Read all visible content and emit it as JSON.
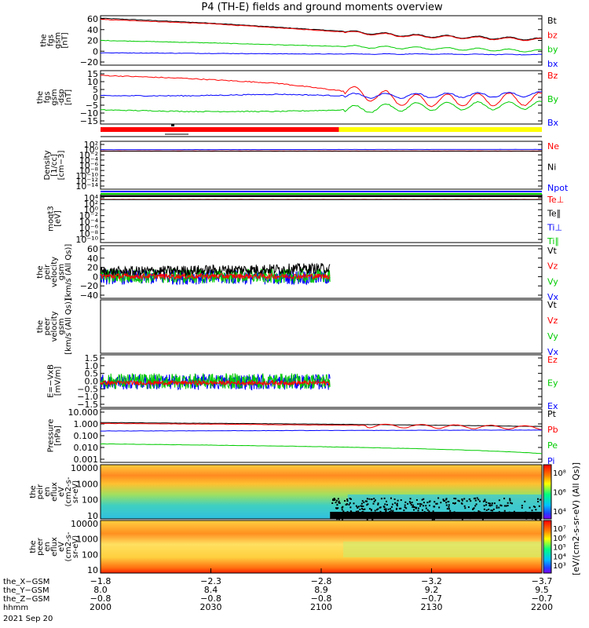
{
  "title": "P4 (TH-E) fields and ground moments overview",
  "colors": {
    "black": "#000000",
    "red": "#ff0000",
    "green": "#00cc00",
    "blue": "#0000ff",
    "yellow": "#ffff00"
  },
  "chart_data": [
    {
      "type": "line",
      "panel": "fgs_btotal",
      "ylabel": [
        "the",
        "fgs",
        "gsm",
        "[nT]"
      ],
      "yticks": [
        "60",
        "40",
        "20",
        "0",
        "−20"
      ],
      "ylim": [
        -20,
        60
      ],
      "legend": [
        {
          "name": "Bt",
          "color": "#000000"
        },
        {
          "name": "bz",
          "color": "#ff0000"
        },
        {
          "name": "by",
          "color": "#00cc00"
        },
        {
          "name": "bx",
          "color": "#0000ff"
        }
      ],
      "series": [
        {
          "name": "Bt",
          "x": [
            0,
            0.25,
            0.5,
            0.7,
            1
          ],
          "y": [
            56,
            48,
            37,
            28,
            22
          ]
        },
        {
          "name": "bz",
          "x": [
            0,
            0.25,
            0.5,
            0.7,
            1
          ],
          "y": [
            54,
            47,
            36,
            27,
            21
          ]
        },
        {
          "name": "by",
          "x": [
            0,
            0.25,
            0.5,
            0.7,
            1
          ],
          "y": [
            20,
            16,
            11,
            8,
            3
          ]
        },
        {
          "name": "bx",
          "x": [
            0,
            0.25,
            0.5,
            0.7,
            1
          ],
          "y": [
            0,
            -1,
            -2,
            -2,
            -3
          ]
        }
      ]
    },
    {
      "type": "line",
      "panel": "fgs_gsm",
      "ylabel": [
        "the",
        "fgs",
        "gsm",
        "-dsp",
        "[nT]"
      ],
      "yticks": [
        "15",
        "10",
        "5",
        "0",
        "−5",
        "−10",
        "−15"
      ],
      "ylim": [
        -18,
        16
      ],
      "legend": [
        {
          "name": "Bz",
          "color": "#ff0000"
        },
        {
          "name": "By",
          "color": "#00cc00"
        },
        {
          "name": "Bx",
          "color": "#0000ff"
        }
      ],
      "series": [
        {
          "name": "Bz",
          "x": [
            0,
            0.2,
            0.4,
            0.55,
            0.7,
            1
          ],
          "y": [
            13,
            11,
            8,
            3,
            -3,
            -2
          ]
        },
        {
          "name": "By",
          "x": [
            0,
            0.2,
            0.4,
            0.55,
            0.7,
            1
          ],
          "y": [
            -9,
            -10,
            -10,
            -9,
            -7,
            -6
          ]
        },
        {
          "name": "Bx",
          "x": [
            0,
            0.2,
            0.4,
            0.55,
            0.7,
            1
          ],
          "y": [
            0,
            0,
            1,
            0,
            0,
            1
          ]
        }
      ]
    },
    {
      "type": "line",
      "panel": "density",
      "ylabel": [
        "Density",
        "[1/cc]",
        "[cm−3]"
      ],
      "yticks": [
        "10²",
        "10⁰",
        "10⁻²",
        "10⁻⁴",
        "10⁻⁶",
        "10⁻⁸",
        "10⁻¹⁰",
        "10⁻¹²",
        "10⁻¹⁴"
      ],
      "ylog": true,
      "legend": [
        {
          "name": "Ne",
          "color": "#ff0000"
        },
        {
          "name": "Ni",
          "color": "#000000"
        },
        {
          "name": "Npot",
          "color": "#0000ff"
        }
      ],
      "series": [
        {
          "name": "Npot",
          "y": [
            1.0,
            1.2
          ]
        },
        {
          "name": "Ne",
          "y": [
            0.3,
            0.3
          ]
        },
        {
          "name": "Ni",
          "y": [
            0.25,
            0.25
          ]
        }
      ]
    },
    {
      "type": "line",
      "panel": "temperature",
      "ylabel": [
        "moqt3",
        "[eV]"
      ],
      "yticks": [
        "10⁴",
        "10²",
        "10⁰",
        "10⁻²",
        "10⁻⁴",
        "10⁻⁶",
        "10⁻⁸",
        "10⁻¹⁰"
      ],
      "ylog": true,
      "legend": [
        {
          "name": "Te⊥",
          "color": "#ff0000"
        },
        {
          "name": "Te∥",
          "color": "#000000"
        },
        {
          "name": "Ti⊥",
          "color": "#0000ff"
        },
        {
          "name": "Ti∥",
          "color": "#00cc00"
        }
      ]
    },
    {
      "type": "line",
      "panel": "peir_velocity",
      "ylabel": [
        "the",
        "peir",
        "velocity",
        "gsm",
        "[km/s (All Qs)]"
      ],
      "yticks": [
        "60",
        "40",
        "20",
        "0",
        "−20",
        "−40"
      ],
      "ylim": [
        -40,
        60
      ],
      "legend": [
        {
          "name": "Vt",
          "color": "#000000"
        },
        {
          "name": "Vz",
          "color": "#ff0000"
        },
        {
          "name": "Vy",
          "color": "#00cc00"
        },
        {
          "name": "Vx",
          "color": "#0000ff"
        }
      ]
    },
    {
      "type": "line",
      "panel": "peer_velocity",
      "ylabel": [
        "the",
        "peer",
        "velocity",
        "gsm",
        "[km/s (All Qs)]"
      ],
      "legend": [
        {
          "name": "Vt",
          "color": "#000000"
        },
        {
          "name": "Vz",
          "color": "#ff0000"
        },
        {
          "name": "Vy",
          "color": "#00cc00"
        },
        {
          "name": "Vx",
          "color": "#0000ff"
        }
      ]
    },
    {
      "type": "line",
      "panel": "efield",
      "ylabel": [
        "E=−VxB",
        "[mV/m]"
      ],
      "yticks": [
        "1.5",
        "1.0",
        "0.5",
        "0.0",
        "−0.5",
        "−1.0",
        "−1.5"
      ],
      "ylim": [
        -1.5,
        1.5
      ],
      "legend": [
        {
          "name": "Ez",
          "color": "#ff0000"
        },
        {
          "name": "Ey",
          "color": "#00cc00"
        },
        {
          "name": "Ex",
          "color": "#0000ff"
        }
      ]
    },
    {
      "type": "line",
      "panel": "pressure",
      "ylabel": [
        "Pressure",
        "[nPa]"
      ],
      "yticks": [
        "10.000",
        "1.000",
        "0.100",
        "0.010",
        "0.001"
      ],
      "ylog": true,
      "legend": [
        {
          "name": "Pt",
          "color": "#000000"
        },
        {
          "name": "Pb",
          "color": "#ff0000"
        },
        {
          "name": "Pe",
          "color": "#00cc00"
        },
        {
          "name": "Pi",
          "color": "#0000ff"
        }
      ],
      "series": [
        {
          "name": "Pt",
          "y": [
            1.3,
            0.6
          ]
        },
        {
          "name": "Pb",
          "y": [
            1.1,
            0.5
          ]
        },
        {
          "name": "Pi",
          "y": [
            0.25,
            0.3
          ]
        },
        {
          "name": "Pe",
          "y": [
            0.02,
            0.003
          ]
        }
      ]
    },
    {
      "type": "heatmap",
      "panel": "peir_spectrogram",
      "ylabel": [
        "the",
        "peir",
        "en",
        "eflux",
        "eV",
        "(cm2-s-",
        "sr-eV)"
      ],
      "yticks": [
        "10000",
        "1000",
        "100",
        "10"
      ],
      "colorbar_ticks": [
        "10⁸",
        "10⁶",
        "10⁴"
      ]
    },
    {
      "type": "heatmap",
      "panel": "peer_spectrogram",
      "ylabel": [
        "the",
        "peer",
        "en",
        "eflux",
        "eV",
        "(cm2-s-",
        "sr-eV)"
      ],
      "yticks": [
        "10000",
        "1000",
        "100",
        "10"
      ],
      "colorbar_ticks": [
        "10⁷",
        "10⁶",
        "10⁵",
        "10⁴",
        "10³"
      ]
    }
  ],
  "colorbar_label": "[eV/(cm2-s-sr-eV) (All Qs)]",
  "xaxis": {
    "rows": [
      {
        "label": "the_X−GSM",
        "values": [
          "−1.8",
          "−2.3",
          "−2.8",
          "−3.2",
          "−3.7"
        ]
      },
      {
        "label": "the_Y−GSM",
        "values": [
          "8.0",
          "8.4",
          "8.9",
          "9.2",
          "9.5"
        ]
      },
      {
        "label": "the_Z−GSM",
        "values": [
          "−0.8",
          "−0.8",
          "−0.8",
          "−0.7",
          "−0.7"
        ]
      },
      {
        "label": "hhmm",
        "values": [
          "2000",
          "2030",
          "2100",
          "2130",
          "2200"
        ]
      }
    ],
    "date": "2021 Sep 20"
  }
}
